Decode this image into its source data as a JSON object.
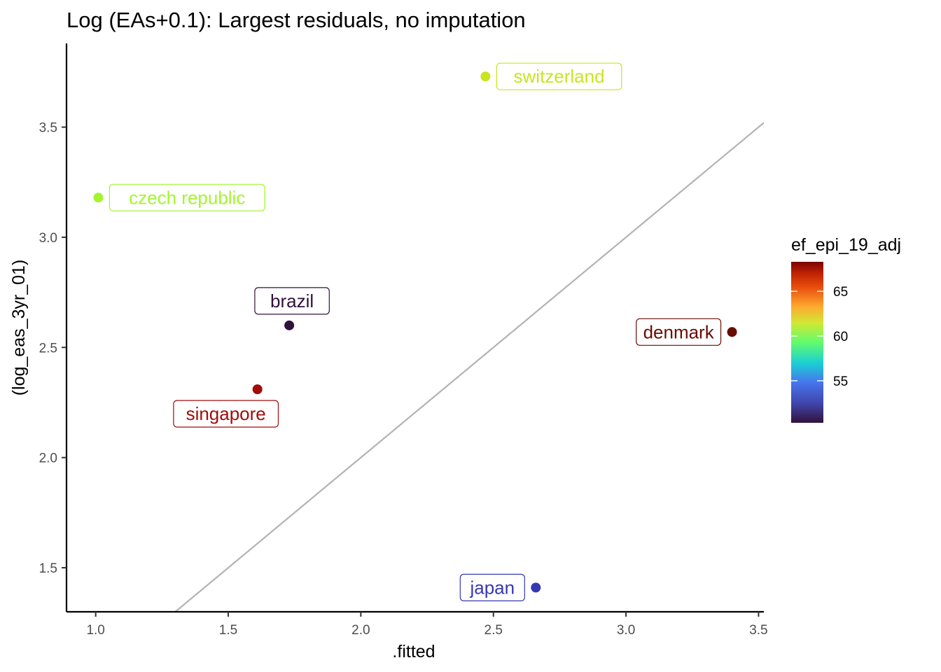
{
  "chart_data": {
    "type": "scatter",
    "title": "Log (EAs+0.1): Largest residuals, no imputation",
    "xlabel": ".fitted",
    "ylabel": "(log_eas_3yr_01)",
    "xlim": [
      0.89,
      3.52
    ],
    "ylim": [
      1.3,
      3.88
    ],
    "xticks": [
      1.0,
      1.5,
      2.0,
      2.5,
      3.0,
      3.5
    ],
    "xtick_labels": [
      "1.0",
      "1.5",
      "2.0",
      "2.5",
      "3.0",
      "3.5"
    ],
    "yticks": [
      1.5,
      2.0,
      2.5,
      3.0,
      3.5
    ],
    "ytick_labels": [
      "1.5",
      "2.0",
      "2.5",
      "3.0",
      "3.5"
    ],
    "grid": false,
    "reference_line": {
      "type": "identity",
      "color": "#b3b3b3"
    },
    "legend": {
      "title": "ef_epi_19_adj",
      "placement": "right",
      "type": "colorbar",
      "range": [
        50.3,
        68.3
      ],
      "ticks": [
        55,
        60,
        65
      ],
      "tick_labels": [
        "55",
        "60",
        "65"
      ]
    },
    "points": [
      {
        "label": "switzerland",
        "x": 2.47,
        "y": 3.73,
        "color": "#c8e51e",
        "label_side": "right"
      },
      {
        "label": "czech republic",
        "x": 1.01,
        "y": 3.18,
        "color": "#a4f52e",
        "label_side": "right"
      },
      {
        "label": "brazil",
        "x": 1.73,
        "y": 2.6,
        "color": "#30123b",
        "label_side": "above"
      },
      {
        "label": "denmark",
        "x": 3.4,
        "y": 2.57,
        "color": "#6a0c04",
        "label_side": "left"
      },
      {
        "label": "singapore",
        "x": 1.61,
        "y": 2.31,
        "color": "#a00d0b",
        "label_side": "below"
      },
      {
        "label": "japan",
        "x": 2.66,
        "y": 1.41,
        "color": "#3639b0",
        "label_side": "left"
      }
    ]
  }
}
